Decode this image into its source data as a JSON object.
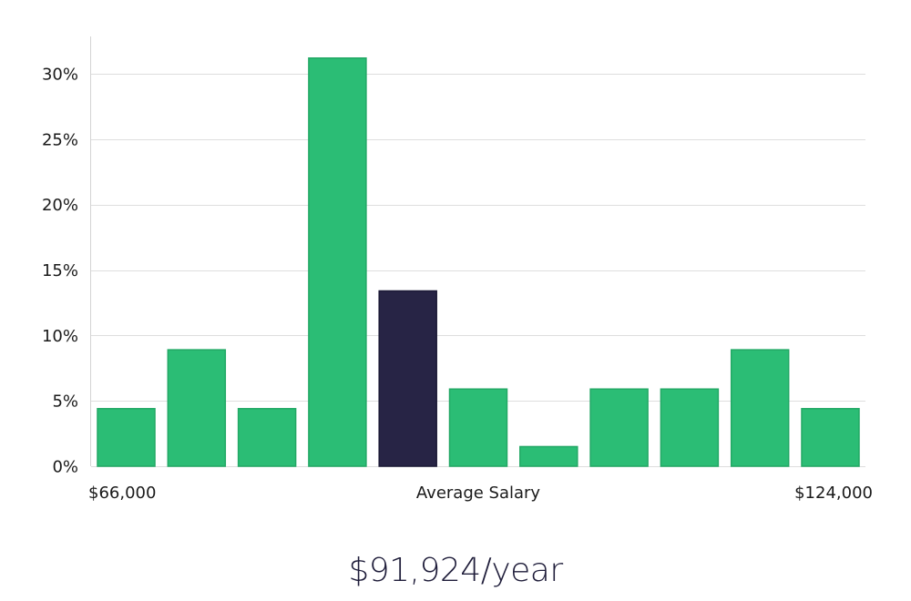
{
  "chart_data": {
    "type": "bar",
    "values": [
      4.4,
      8.9,
      4.4,
      31.2,
      13.4,
      5.9,
      1.5,
      5.9,
      5.9,
      8.9,
      4.4
    ],
    "highlight_index": 4,
    "ylim": [
      0,
      33
    ],
    "yticks": [
      0,
      5,
      10,
      15,
      20,
      25,
      30
    ],
    "ytick_format": "%",
    "bar_color": "#2bbd75",
    "highlight_color": "#272445",
    "grid": true,
    "x_left_label": "$66,000",
    "x_center_label": "Average Salary",
    "x_right_label": "$124,000"
  },
  "salary": {
    "display": "$91,924/year"
  }
}
